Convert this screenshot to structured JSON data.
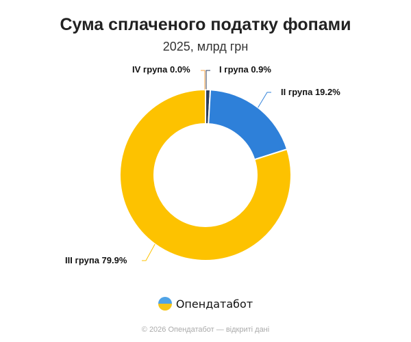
{
  "chart_data": {
    "type": "pie",
    "donut": true,
    "title": "Сума сплаченого податку фопами",
    "subtitle": "2025, млрд грн",
    "slices": [
      {
        "label": "I група 0.9%",
        "value": 0.9,
        "color": "#2c3e5c"
      },
      {
        "label": "II група 19.2%",
        "value": 19.2,
        "color": "#2e80d9"
      },
      {
        "label": "III група 79.9%",
        "value": 79.9,
        "color": "#fdc200"
      },
      {
        "label": "IV група 0.0%",
        "value": 0.0,
        "color": "#f5a142"
      }
    ]
  },
  "brand": "Опендатабот",
  "footer": "© 2026 Опендатабот — відкриті дані"
}
